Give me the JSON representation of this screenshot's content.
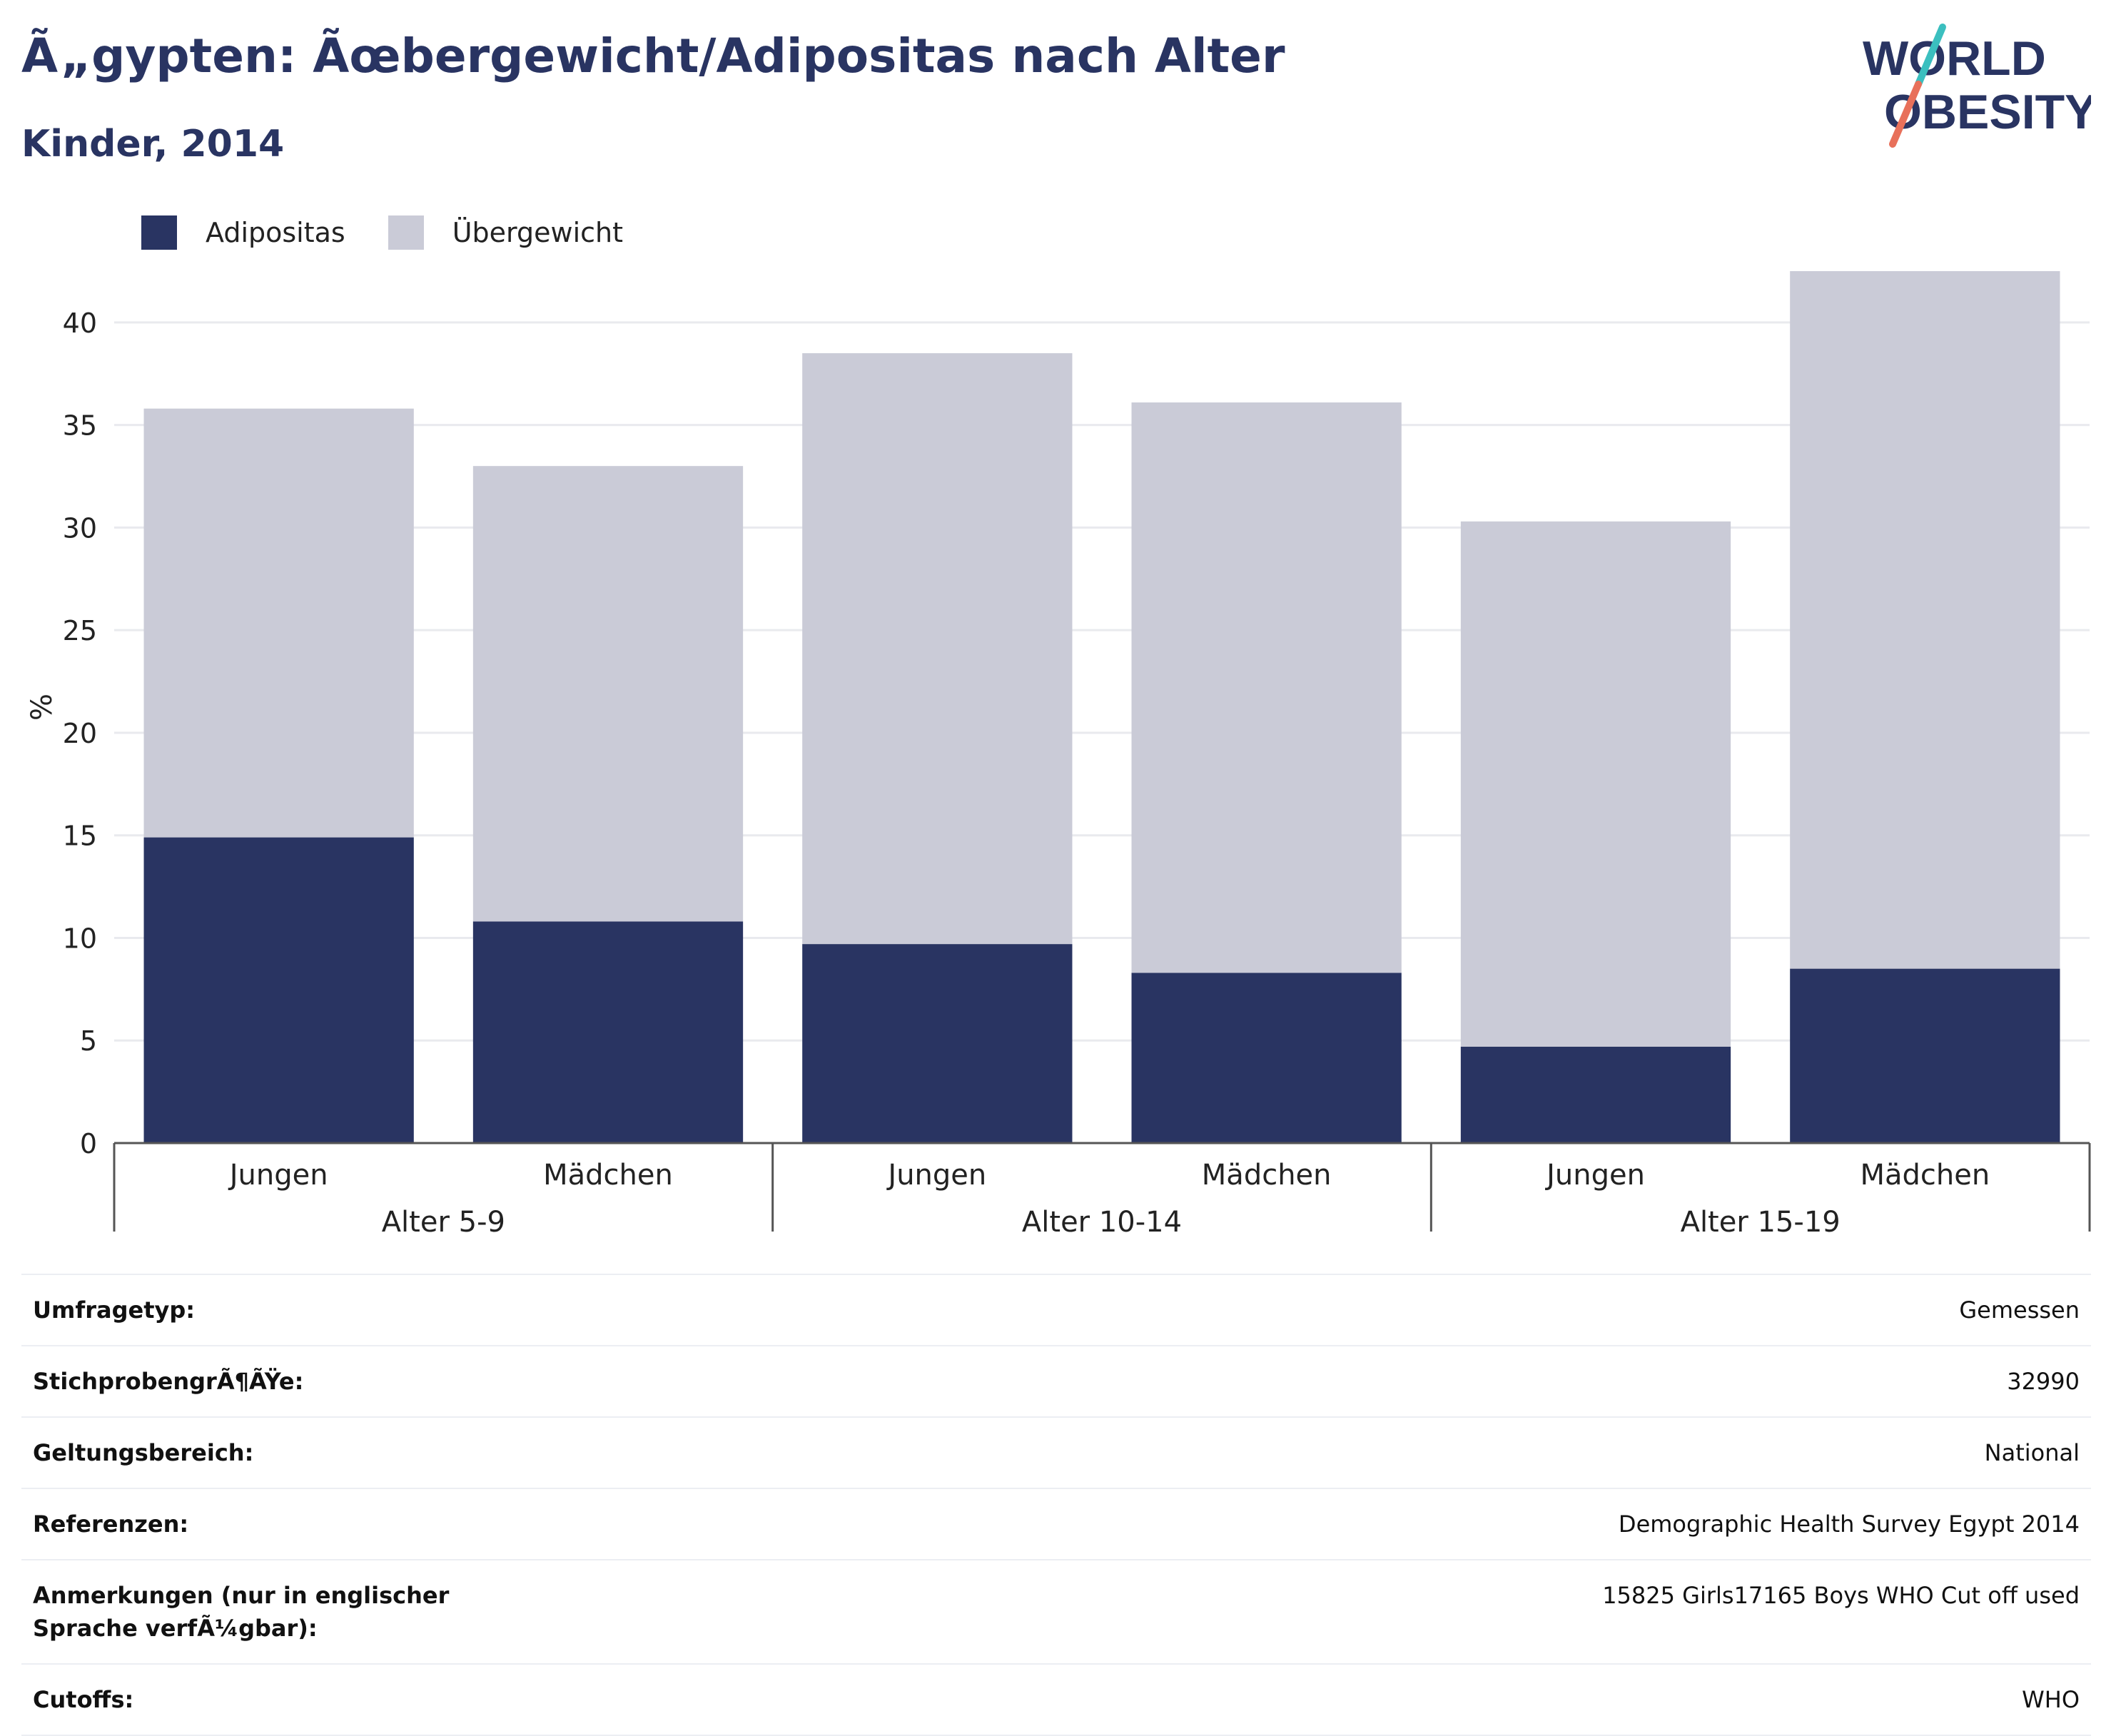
{
  "header": {
    "title": "Ã„gypten: Ãœbergewicht/Adipositas nach Alter",
    "subtitle": "Kinder, 2014",
    "logo_line1": "WORLD",
    "logo_line2": "OBESITY"
  },
  "colors": {
    "adipositas": "#293462",
    "uebergewicht": "#cacbd7",
    "text": "#293462",
    "logo_teal": "#3bbfbf",
    "logo_coral": "#e8705a",
    "grid": "#e9eaee",
    "axis": "#555555"
  },
  "legend": [
    {
      "name": "Adipositas",
      "color": "#293462"
    },
    {
      "name": "Übergewicht",
      "color": "#cacbd7"
    }
  ],
  "chart_data": {
    "type": "bar",
    "stacked": true,
    "ylabel": "%",
    "xlabel": "",
    "ylim": [
      0,
      42.5
    ],
    "yticks": [
      0,
      5,
      10,
      15,
      20,
      25,
      30,
      35,
      40
    ],
    "grid": true,
    "legend_position": "top-left",
    "categories": [
      "Jungen",
      "Mädchen",
      "Jungen",
      "Mädchen",
      "Jungen",
      "Mädchen"
    ],
    "groups": [
      {
        "label": "Alter 5-9",
        "count": 2
      },
      {
        "label": "Alter 10-14",
        "count": 2
      },
      {
        "label": "Alter 15-19",
        "count": 2
      }
    ],
    "series": [
      {
        "name": "Adipositas",
        "values": [
          14.9,
          10.8,
          9.7,
          8.3,
          4.7,
          8.5
        ]
      },
      {
        "name": "Übergewicht",
        "values": [
          20.9,
          22.2,
          28.8,
          27.8,
          25.6,
          34.0
        ]
      }
    ]
  },
  "info": [
    {
      "label": "Umfragetyp:",
      "value": "Gemessen"
    },
    {
      "label": "StichprobengrÃ¶ÃŸe:",
      "value": "32990"
    },
    {
      "label": "Geltungsbereich:",
      "value": "National"
    },
    {
      "label": "Referenzen:",
      "value": "Demographic Health Survey Egypt 2014"
    },
    {
      "label": "Anmerkungen (nur in englischer Sprache verfÃ¼gbar):",
      "value": "15825 Girls17165 Boys WHO Cut off used"
    },
    {
      "label": "Cutoffs:",
      "value": "WHO"
    }
  ]
}
